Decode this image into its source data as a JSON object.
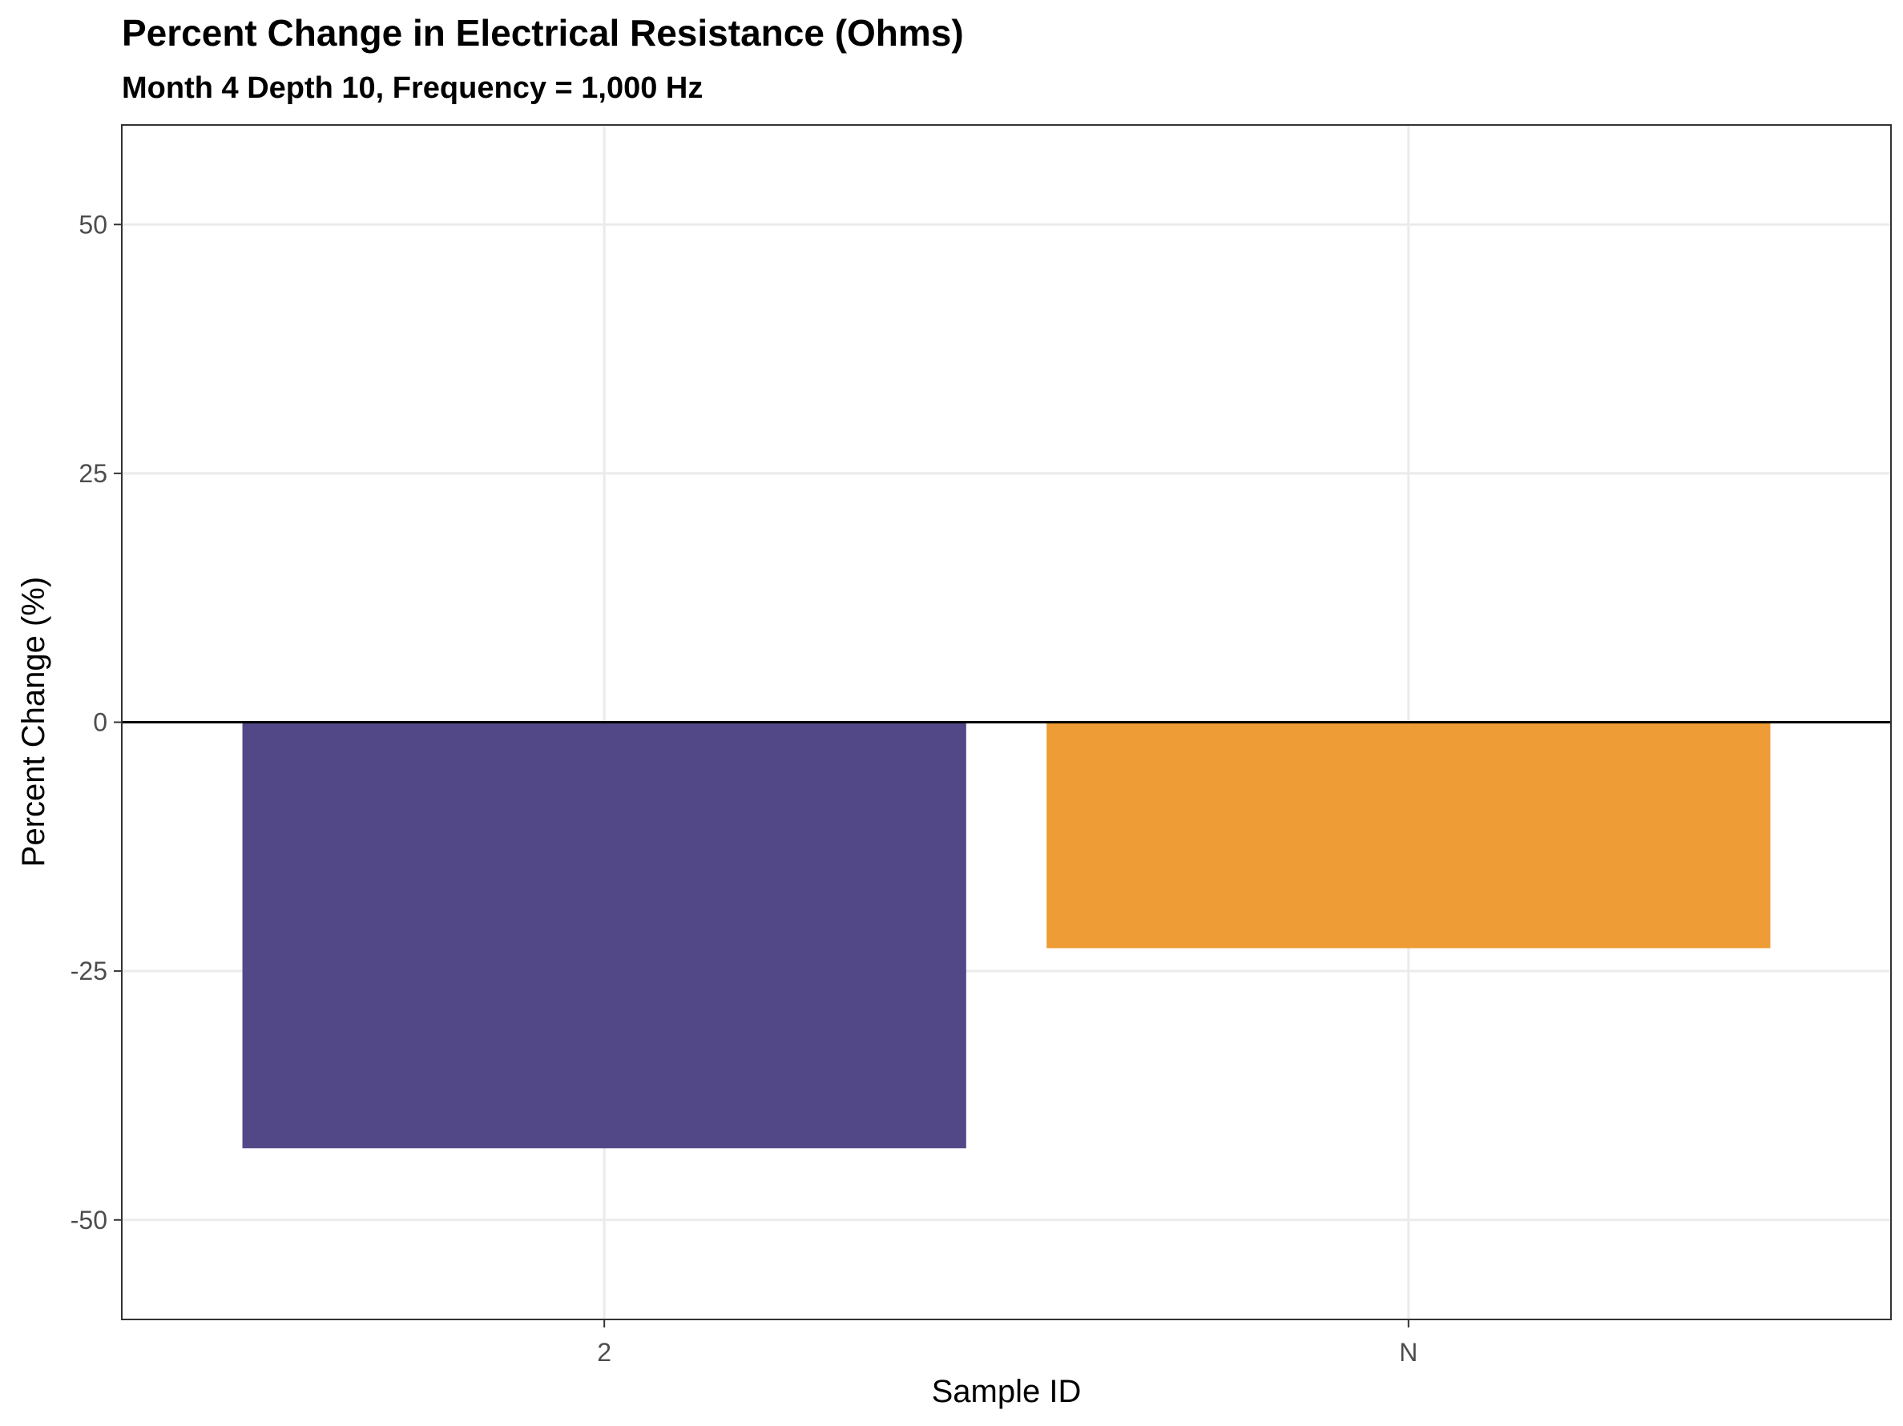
{
  "chart_data": {
    "type": "bar",
    "title": "Percent Change in Electrical Resistance (Ohms)",
    "subtitle": "Month 4 Depth 10, Frequency = 1,000 Hz",
    "xlabel": "Sample ID",
    "ylabel": "Percent Change (%)",
    "categories": [
      "2",
      "N"
    ],
    "values": [
      -42.8,
      -22.7
    ],
    "bar_colors": [
      "#524888",
      "#EE9C35"
    ],
    "ylim": [
      -60,
      60
    ],
    "yticks": [
      -50,
      -25,
      0,
      25,
      50
    ],
    "ytick_labels": [
      "-50",
      "-25",
      "0",
      "25",
      "50"
    ],
    "grid": true,
    "reference_line": 0,
    "legend": "none"
  }
}
